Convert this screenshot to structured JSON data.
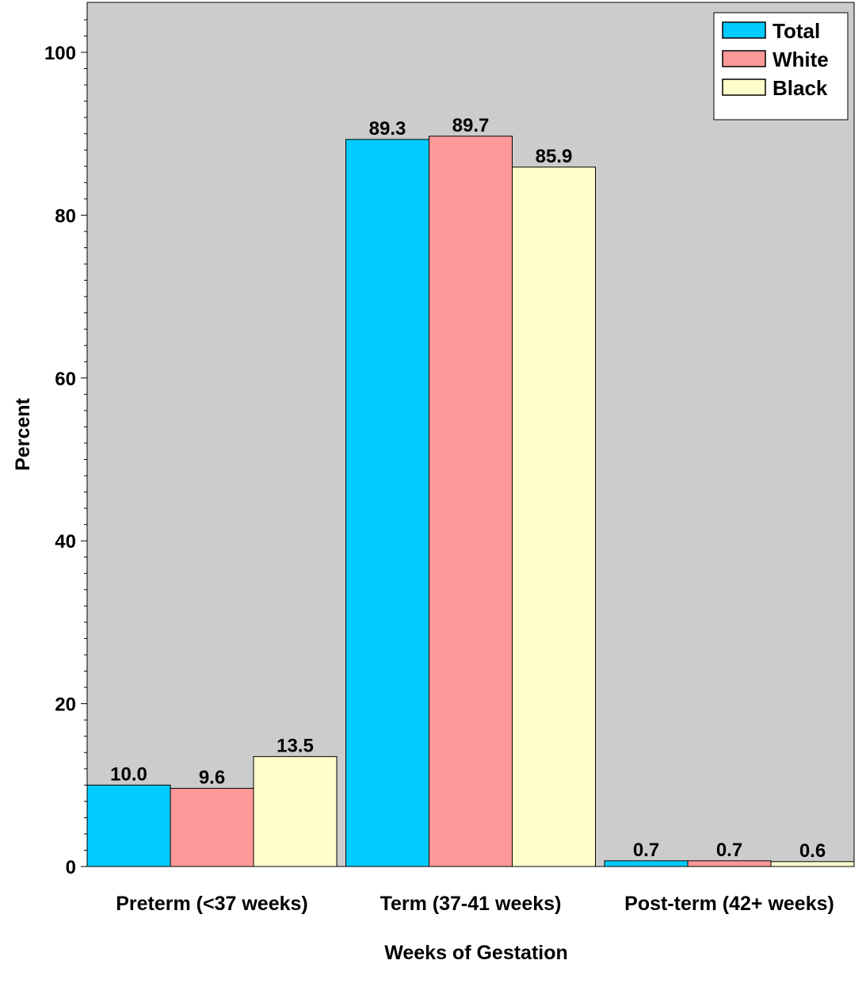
{
  "chart_data": {
    "type": "bar",
    "title": "",
    "xlabel": "Weeks of Gestation",
    "ylabel": "Percent",
    "ylim": [
      0,
      100
    ],
    "yticks": [
      "0",
      "20",
      "40",
      "60",
      "80",
      "100"
    ],
    "categories": [
      "Preterm (<37 weeks)",
      "Term (37-41 weeks)",
      "Post-term (42+ weeks)"
    ],
    "series": [
      {
        "name": "Total",
        "color": "#00ccff",
        "values": [
          10.0,
          89.3,
          0.7
        ],
        "labels": [
          "10.0",
          "89.3",
          "0.7"
        ]
      },
      {
        "name": "White",
        "color": "#ff9999",
        "values": [
          9.6,
          89.7,
          0.7
        ],
        "labels": [
          "9.6",
          "89.7",
          "0.7"
        ]
      },
      {
        "name": "Black",
        "color": "#ffffcc",
        "values": [
          13.5,
          85.9,
          0.6
        ],
        "labels": [
          "13.5",
          "85.9",
          "0.6"
        ]
      }
    ],
    "plot_background": "#cccccc",
    "grid": false,
    "legend_position": "top-right"
  }
}
